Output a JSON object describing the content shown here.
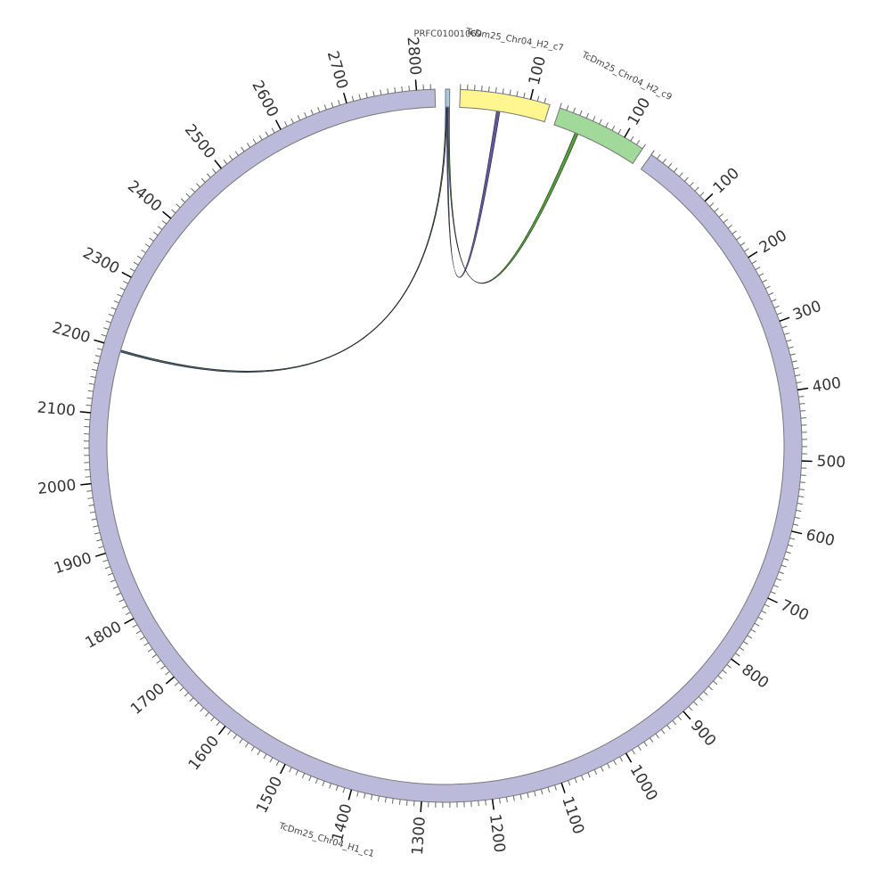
{
  "chart_data": {
    "type": "circos",
    "segments": [
      {
        "name": "PRFC01001069",
        "length": 6,
        "color": "#a6c9e2",
        "ticks": []
      },
      {
        "name": "TcDm25_Chr04_H2_c7",
        "length": 128,
        "color": "#fff68f",
        "ticks": [
          100
        ]
      },
      {
        "name": "TcDm25_Chr04_H2_c9",
        "length": 130,
        "color": "#a1d99b",
        "ticks": [
          100
        ]
      },
      {
        "name": "TcDm25_Chr04_H1_c1",
        "length": 2826,
        "color": "#bcbadb",
        "ticks": [
          100,
          200,
          300,
          400,
          500,
          600,
          700,
          800,
          900,
          1000,
          1100,
          1200,
          1300,
          1400,
          1500,
          1600,
          1700,
          1800,
          1900,
          2000,
          2100,
          2200,
          2300,
          2400,
          2500,
          2600,
          2700,
          2800
        ]
      }
    ],
    "minor_tick_interval": 10,
    "links": [
      {
        "source": "PRFC01001069",
        "source_range": [
          0,
          2
        ],
        "target": "TcDm25_Chr04_H1_c1",
        "target_range": [
          2194,
          2197
        ],
        "color": "#3b5566"
      },
      {
        "source": "PRFC01001069",
        "source_range": [
          2,
          4
        ],
        "target": "TcDm25_Chr04_H2_c7",
        "target_range": [
          55,
          60
        ],
        "color": "#5a4e9e"
      },
      {
        "source": "PRFC01001069",
        "source_range": [
          4,
          6
        ],
        "target": "TcDm25_Chr04_H2_c9",
        "target_range": [
          33,
          38
        ],
        "color": "#4a9a2e"
      }
    ]
  }
}
